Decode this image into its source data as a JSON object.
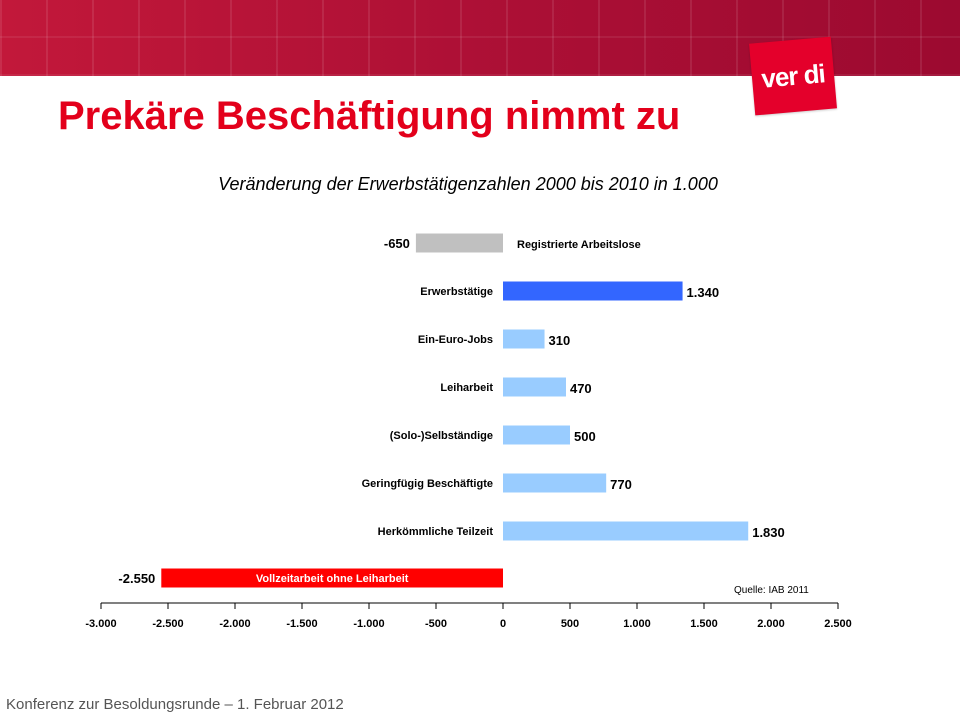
{
  "header": {
    "title": "Prekäre Beschäftigung nimmt zu",
    "logo_text": "ver.di",
    "colors": {
      "banner": "#ab0f35",
      "title": "#e3001b",
      "logo": "#e4002b"
    }
  },
  "footer": {
    "text": "Konferenz zur Besoldungsrunde – 1. Februar 2012"
  },
  "chart_data": {
    "type": "bar",
    "orientation": "horizontal",
    "title": "Veränderung der Erwerbstätigenzahlen 2000 bis 2010 in 1.000",
    "categories": [
      "Registrierte Arbeitslose",
      "Erwerbstätige",
      "Ein-Euro-Jobs",
      "Leiharbeit",
      "(Solo-)Selbständige",
      "Geringfügig Beschäftigte",
      "Herkömmliche Teilzeit",
      "Vollzeitarbeit ohne Leiharbeit"
    ],
    "values": [
      -650,
      1340,
      310,
      470,
      500,
      770,
      1830,
      -2550
    ],
    "value_labels": [
      "-650",
      "1.340",
      "310",
      "470",
      "500",
      "770",
      "1.830",
      "-2.550"
    ],
    "bar_colors": [
      "#c0c0c0",
      "#3366ff",
      "#99ccff",
      "#99ccff",
      "#99ccff",
      "#99ccff",
      "#99ccff",
      "#ff0000"
    ],
    "xlim": [
      -3000,
      2500
    ],
    "x_ticks": [
      -3000,
      -2500,
      -2000,
      -1500,
      -1000,
      -500,
      0,
      500,
      1000,
      1500,
      2000,
      2500
    ],
    "x_tick_labels": [
      "-3.000",
      "-2.500",
      "-2.000",
      "-1.500",
      "-1.000",
      "-500",
      "0",
      "500",
      "1.000",
      "1.500",
      "2.000",
      "2.500"
    ],
    "source": "Quelle: IAB 2011",
    "grid": false
  }
}
